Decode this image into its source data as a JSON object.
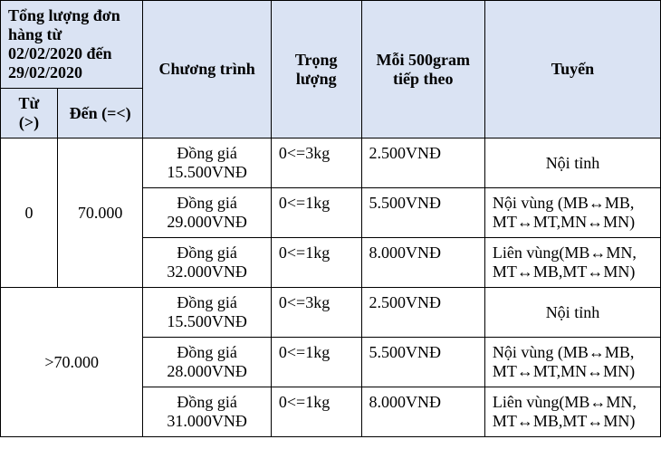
{
  "table": {
    "colors": {
      "header_bg": "#dae3f3",
      "border": "#000000",
      "bg": "#ffffff",
      "text": "#000000"
    },
    "font": {
      "family": "Times New Roman",
      "size_pt": 18
    },
    "columns": {
      "group_header": "Tổng lượng đơn hàng từ 02/02/2020 đến 29/02/2020",
      "from": "Từ (>)",
      "to": "Đến (=<)",
      "program": "Chương trình",
      "weight": "Trọng lượng",
      "per500": "Mỗi 500gram tiếp theo",
      "route": "Tuyến"
    },
    "groups": [
      {
        "from": "0",
        "to": "70.000",
        "rows": [
          {
            "program": "Đồng giá 15.500VNĐ",
            "weight": "0<=3kg",
            "per500": "2.500VNĐ",
            "route": "Nội tỉnh"
          },
          {
            "program": "Đồng giá 29.000VNĐ",
            "weight": "0<=1kg",
            "per500": "5.500VNĐ",
            "route": "Nội vùng (MB↔MB, MT↔MT,MN↔MN)"
          },
          {
            "program": "Đồng giá 32.000VNĐ",
            "weight": "0<=1kg",
            "per500": "8.000VNĐ",
            "route": "Liên vùng(MB↔MN, MT↔MB,MT↔MN)"
          }
        ]
      },
      {
        "merged": ">70.000",
        "rows": [
          {
            "program": "Đồng giá 15.500VNĐ",
            "weight": "0<=3kg",
            "per500": "2.500VNĐ",
            "route": "Nội tỉnh"
          },
          {
            "program": "Đồng giá 28.000VNĐ",
            "weight": "0<=1kg",
            "per500": "5.500VNĐ",
            "route": "Nội vùng (MB↔MB, MT↔MT,MN↔MN)"
          },
          {
            "program": "Đồng giá 31.000VNĐ",
            "weight": "0<=1kg",
            "per500": "8.000VNĐ",
            "route": "Liên vùng(MB↔MN, MT↔MB,MT↔MN)"
          }
        ]
      }
    ]
  }
}
